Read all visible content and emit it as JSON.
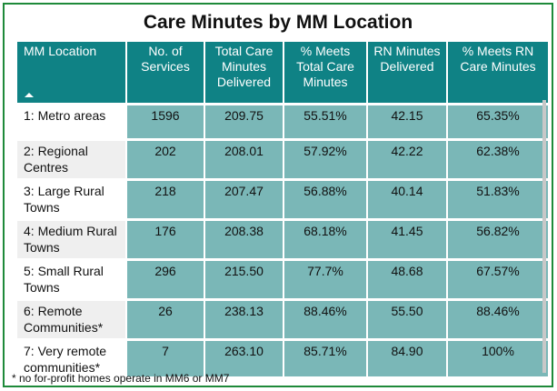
{
  "title": "Care Minutes by MM Location",
  "colors": {
    "header": "#0f8285",
    "cell": "#7ab7b7",
    "border": "#1e8a3a"
  },
  "columns": [
    "MM Location",
    "No. of Services",
    "Total Care Minutes Delivered",
    "% Meets Total Care Minutes",
    "RN Minutes Delivered",
    "% Meets RN Care Minutes"
  ],
  "rows": [
    {
      "location": "1: Metro areas",
      "services": "1596",
      "total_minutes": "209.75",
      "pct_total": "55.51%",
      "rn_minutes": "42.15",
      "pct_rn": "65.35%"
    },
    {
      "location": "2: Regional Centres",
      "services": "202",
      "total_minutes": "208.01",
      "pct_total": "57.92%",
      "rn_minutes": "42.22",
      "pct_rn": "62.38%"
    },
    {
      "location": "3: Large Rural Towns",
      "services": "218",
      "total_minutes": "207.47",
      "pct_total": "56.88%",
      "rn_minutes": "40.14",
      "pct_rn": "51.83%"
    },
    {
      "location": "4: Medium Rural Towns",
      "services": "176",
      "total_minutes": "208.38",
      "pct_total": "68.18%",
      "rn_minutes": "41.45",
      "pct_rn": "56.82%"
    },
    {
      "location": "5: Small Rural Towns",
      "services": "296",
      "total_minutes": "215.50",
      "pct_total": "77.7%",
      "rn_minutes": "48.68",
      "pct_rn": "67.57%"
    },
    {
      "location": "6: Remote Communities*",
      "services": "26",
      "total_minutes": "238.13",
      "pct_total": "88.46%",
      "rn_minutes": "55.50",
      "pct_rn": "88.46%"
    },
    {
      "location": "7: Very remote communities*",
      "services": "7",
      "total_minutes": "263.10",
      "pct_total": "85.71%",
      "rn_minutes": "84.90",
      "pct_rn": "100%"
    }
  ],
  "footnote": "* no for-profit homes operate in MM6 or MM7",
  "sort_icon": "sort-ascending-icon"
}
